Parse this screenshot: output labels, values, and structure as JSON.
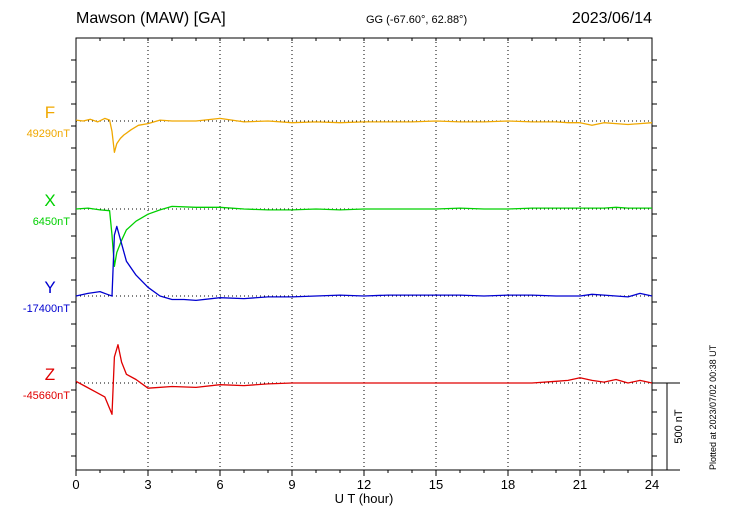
{
  "header": {
    "station": "Mawson (MAW)  [GA]",
    "coords": "GG (-67.60°,  62.88°)",
    "date": "2023/06/14"
  },
  "plotted_note": "Plotted at 2023/07/02 00:38 UT",
  "chart_data": {
    "type": "line",
    "xlabel": "U T (hour)",
    "xlim": [
      0,
      24
    ],
    "x_ticks": [
      "0",
      "3",
      "6",
      "9",
      "12",
      "15",
      "18",
      "21",
      "24"
    ],
    "scale_bar_label": "500 nT",
    "grid": "dotted vertical lines every 3 hours",
    "series": [
      {
        "name": "F",
        "baseline_label": "49290nT",
        "color": "#f0a800",
        "x": [
          0,
          0.3,
          0.6,
          0.9,
          1.2,
          1.4,
          1.5,
          1.6,
          1.7,
          1.85,
          2.0,
          2.3,
          2.6,
          3.0,
          3.5,
          4.0,
          5.0,
          6.0,
          7.0,
          8.0,
          9.0,
          10.0,
          11.0,
          12.0,
          13.0,
          14.0,
          15.0,
          16.0,
          17.0,
          18.0,
          19.0,
          20.0,
          20.5,
          21.0,
          21.5,
          22.0,
          22.5,
          23.0,
          23.5,
          24.0
        ],
        "y": [
          5,
          0,
          10,
          -5,
          15,
          5,
          -60,
          -180,
          -130,
          -100,
          -80,
          -50,
          -25,
          -15,
          5,
          0,
          0,
          15,
          -5,
          0,
          -10,
          -5,
          -10,
          -5,
          -5,
          -5,
          0,
          -5,
          -5,
          0,
          -5,
          -5,
          -10,
          -10,
          -25,
          -10,
          -15,
          -20,
          -15,
          -10
        ]
      },
      {
        "name": "X",
        "baseline_label": "6450nT",
        "color": "#00d000",
        "x": [
          0,
          0.5,
          1.0,
          1.4,
          1.5,
          1.6,
          1.7,
          1.9,
          2.1,
          2.5,
          3.0,
          3.5,
          4.0,
          5.0,
          6.0,
          7.0,
          8.0,
          9.0,
          10.0,
          11.0,
          12.0,
          13.0,
          14.0,
          15.0,
          16.0,
          17.0,
          18.0,
          19.0,
          20.0,
          21.0,
          22.0,
          22.5,
          23.0,
          23.5,
          24.0
        ],
        "y": [
          0,
          5,
          -5,
          -10,
          -150,
          -330,
          -250,
          -180,
          -120,
          -70,
          -30,
          -5,
          15,
          10,
          10,
          0,
          -5,
          -5,
          0,
          -5,
          0,
          0,
          0,
          0,
          5,
          0,
          0,
          5,
          5,
          5,
          5,
          10,
          5,
          5,
          5
        ]
      },
      {
        "name": "Y",
        "baseline_label": "-17400nT",
        "color": "#0000d0",
        "x": [
          0,
          0.5,
          1.0,
          1.3,
          1.5,
          1.6,
          1.7,
          1.9,
          2.1,
          2.5,
          3.0,
          3.5,
          4.0,
          4.5,
          5.0,
          6.0,
          7.0,
          8.0,
          9.0,
          10.0,
          11.0,
          12.0,
          13.0,
          14.0,
          15.0,
          16.0,
          17.0,
          18.0,
          19.0,
          20.0,
          21.0,
          21.5,
          22.0,
          23.0,
          23.5,
          24.0
        ],
        "y": [
          0,
          15,
          25,
          10,
          0,
          350,
          400,
          300,
          200,
          120,
          50,
          0,
          -20,
          -20,
          -25,
          -10,
          -15,
          -5,
          -5,
          0,
          5,
          0,
          5,
          5,
          5,
          5,
          0,
          5,
          5,
          0,
          0,
          10,
          5,
          -5,
          15,
          0
        ]
      },
      {
        "name": "Z",
        "baseline_label": "-45660nT",
        "color": "#e00000",
        "x": [
          0,
          0.4,
          0.8,
          1.2,
          1.5,
          1.6,
          1.75,
          1.9,
          2.1,
          2.5,
          3.0,
          4.0,
          5.0,
          6.0,
          7.0,
          8.0,
          9.0,
          10.0,
          11.0,
          12.0,
          13.0,
          14.0,
          15.0,
          16.0,
          17.0,
          18.0,
          19.0,
          20.0,
          20.5,
          21.0,
          21.5,
          22.0,
          22.5,
          23.0,
          23.5,
          24.0
        ],
        "y": [
          10,
          -20,
          -50,
          -80,
          -180,
          150,
          220,
          120,
          50,
          20,
          -30,
          -20,
          -25,
          -10,
          -15,
          -5,
          0,
          0,
          0,
          0,
          0,
          0,
          0,
          0,
          0,
          0,
          0,
          10,
          15,
          30,
          15,
          5,
          20,
          0,
          15,
          0
        ]
      }
    ]
  }
}
